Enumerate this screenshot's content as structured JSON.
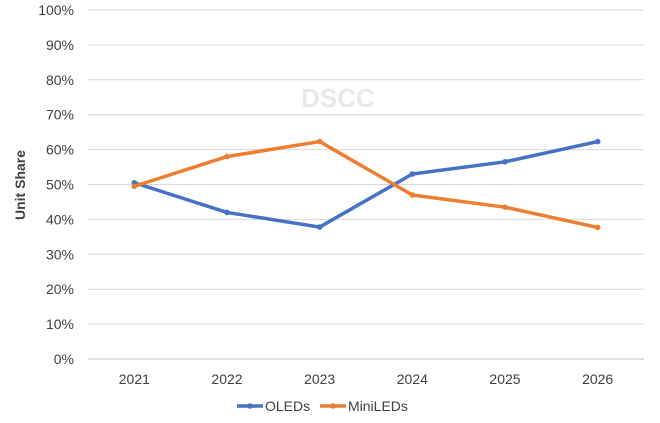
{
  "watermark": "DSCC",
  "chart_data": {
    "type": "line",
    "title": "",
    "xlabel": "",
    "ylabel": "Unit Share",
    "categories": [
      "2021",
      "2022",
      "2023",
      "2024",
      "2025",
      "2026"
    ],
    "y_ticks": [
      "0%",
      "10%",
      "20%",
      "30%",
      "40%",
      "50%",
      "60%",
      "70%",
      "80%",
      "90%",
      "100%"
    ],
    "ylim": [
      0,
      100
    ],
    "grid": true,
    "legend_position": "bottom",
    "series": [
      {
        "name": "OLEDs",
        "color": "#4472C4",
        "values": [
          50.5,
          42,
          37.8,
          53,
          56.5,
          62.3
        ]
      },
      {
        "name": "MiniLEDs",
        "color": "#ED7D31",
        "values": [
          49.5,
          58,
          62.3,
          47,
          43.5,
          37.7
        ]
      }
    ]
  }
}
